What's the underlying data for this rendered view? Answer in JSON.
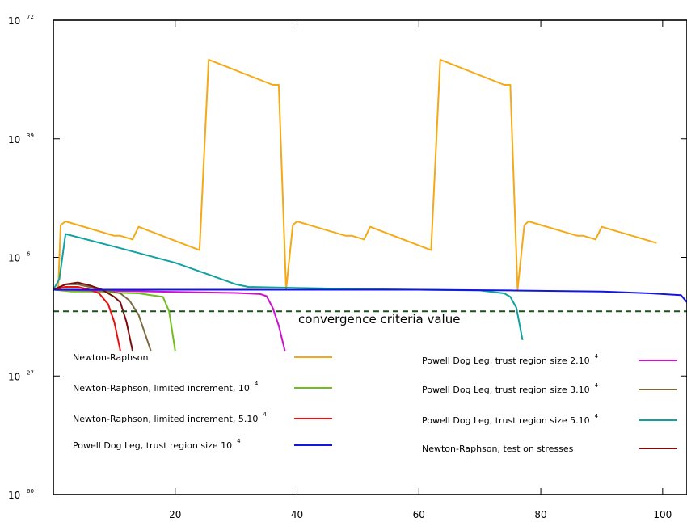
{
  "chart_data": {
    "type": "line",
    "title": "",
    "xlabel": "",
    "ylabel": "",
    "x_axis": {
      "min": 0,
      "max": 104,
      "ticks": [
        20,
        40,
        60,
        80,
        100
      ]
    },
    "y_axis": {
      "scale": "log",
      "inverted": true,
      "min_exponent": 72,
      "max_exponent": -60,
      "ticks": [
        {
          "base": "10",
          "exp": "72",
          "value_exponent": 72
        },
        {
          "base": "10",
          "exp": "39",
          "value_exponent": 39
        },
        {
          "base": "10",
          "exp": "6",
          "value_exponent": 6
        },
        {
          "base": "10",
          "exp": "27",
          "value_exponent": -27
        },
        {
          "base": "10",
          "exp": "60",
          "value_exponent": -60
        }
      ]
    },
    "threshold": {
      "label": "convergence criteria value",
      "value_exponent": -9,
      "color": "#1f4f1f",
      "dashed": true
    },
    "legend": {
      "placement": "bottom",
      "columns": 2
    },
    "series": [
      {
        "name": "Newton-Raphson",
        "sup": "",
        "color": "#f5a915",
        "column": "left",
        "points": [
          [
            0,
            -3
          ],
          [
            0.8,
            -3
          ],
          [
            1.2,
            15
          ],
          [
            2,
            16
          ],
          [
            10,
            12
          ],
          [
            11,
            12
          ],
          [
            13,
            11
          ],
          [
            14,
            14.5
          ],
          [
            24,
            8
          ],
          [
            25.5,
            61
          ],
          [
            36,
            54
          ],
          [
            37,
            54
          ],
          [
            38.2,
            -3
          ],
          [
            39.3,
            15
          ],
          [
            40,
            16
          ],
          [
            48,
            12
          ],
          [
            49,
            12
          ],
          [
            51,
            11
          ],
          [
            52,
            14.5
          ],
          [
            62,
            8
          ],
          [
            63.5,
            61
          ],
          [
            74,
            54
          ],
          [
            75,
            54
          ],
          [
            76.2,
            -3
          ],
          [
            77.3,
            15
          ],
          [
            78,
            16
          ],
          [
            86,
            12
          ],
          [
            87,
            12
          ],
          [
            89,
            11
          ],
          [
            90,
            14.5
          ],
          [
            99,
            10
          ]
        ]
      },
      {
        "name": "Newton-Raphson, limited increment, 10",
        "sup": "4",
        "color": "#6fbe1c",
        "column": "left",
        "points": [
          [
            0,
            -3
          ],
          [
            3,
            -3.5
          ],
          [
            6,
            -3.5
          ],
          [
            10,
            -3.8
          ],
          [
            14,
            -4
          ],
          [
            16,
            -4.5
          ],
          [
            18,
            -5
          ],
          [
            19,
            -9
          ],
          [
            20,
            -20
          ]
        ]
      },
      {
        "name": "Newton-Raphson, limited increment, 5.10",
        "sup": "4",
        "color": "#e81010",
        "column": "left",
        "points": [
          [
            0,
            -3
          ],
          [
            2,
            -2.2
          ],
          [
            4,
            -2.2
          ],
          [
            6,
            -3
          ],
          [
            7.5,
            -4
          ],
          [
            9,
            -7
          ],
          [
            10,
            -12
          ],
          [
            11,
            -20
          ]
        ]
      },
      {
        "name": "Powell Dog Leg, trust region size 10",
        "sup": "4",
        "color": "#1515e0",
        "column": "left",
        "points": [
          [
            0,
            -3
          ],
          [
            20,
            -3
          ],
          [
            40,
            -3
          ],
          [
            60,
            -3
          ],
          [
            75,
            -3.2
          ],
          [
            90,
            -3.5
          ],
          [
            98,
            -4
          ],
          [
            103,
            -4.5
          ],
          [
            104,
            -6.5
          ]
        ]
      },
      {
        "name": "Powell Dog Leg, trust region size 2.10",
        "sup": "4",
        "color": "#cc11cc",
        "column": "right",
        "points": [
          [
            0,
            -3
          ],
          [
            10,
            -3.3
          ],
          [
            20,
            -3.6
          ],
          [
            30,
            -3.9
          ],
          [
            34,
            -4.2
          ],
          [
            35,
            -4.8
          ],
          [
            36,
            -8
          ],
          [
            37,
            -13
          ],
          [
            38,
            -20
          ]
        ]
      },
      {
        "name": "Powell Dog Leg, trust region size 3.10",
        "sup": "4",
        "color": "#7d6a41",
        "column": "right",
        "points": [
          [
            0,
            -3
          ],
          [
            2,
            -1.5
          ],
          [
            4,
            -1.5
          ],
          [
            8,
            -3
          ],
          [
            11,
            -4
          ],
          [
            12.5,
            -6
          ],
          [
            14,
            -10
          ],
          [
            15,
            -15
          ],
          [
            16,
            -20
          ]
        ]
      },
      {
        "name": "Powell Dog Leg, trust region size 5.10",
        "sup": "4",
        "color": "#12a0a0",
        "column": "right",
        "points": [
          [
            0,
            -3
          ],
          [
            1,
            0
          ],
          [
            2,
            12.5
          ],
          [
            10,
            9
          ],
          [
            20,
            4.5
          ],
          [
            30,
            -1.5
          ],
          [
            32,
            -2.2
          ],
          [
            40,
            -2.5
          ],
          [
            50,
            -2.8
          ],
          [
            60,
            -3
          ],
          [
            70,
            -3.2
          ],
          [
            74,
            -4
          ],
          [
            75,
            -5
          ],
          [
            76,
            -8
          ],
          [
            77,
            -17
          ]
        ]
      },
      {
        "name": "Newton-Raphson, test on stresses",
        "sup": "",
        "color": "#7a0c0c",
        "column": "right",
        "points": [
          [
            0,
            -3
          ],
          [
            2,
            -1.5
          ],
          [
            4,
            -1
          ],
          [
            6,
            -1.8
          ],
          [
            8,
            -3
          ],
          [
            10,
            -5
          ],
          [
            11,
            -6.5
          ],
          [
            12,
            -12
          ],
          [
            13,
            -20
          ]
        ]
      }
    ]
  }
}
